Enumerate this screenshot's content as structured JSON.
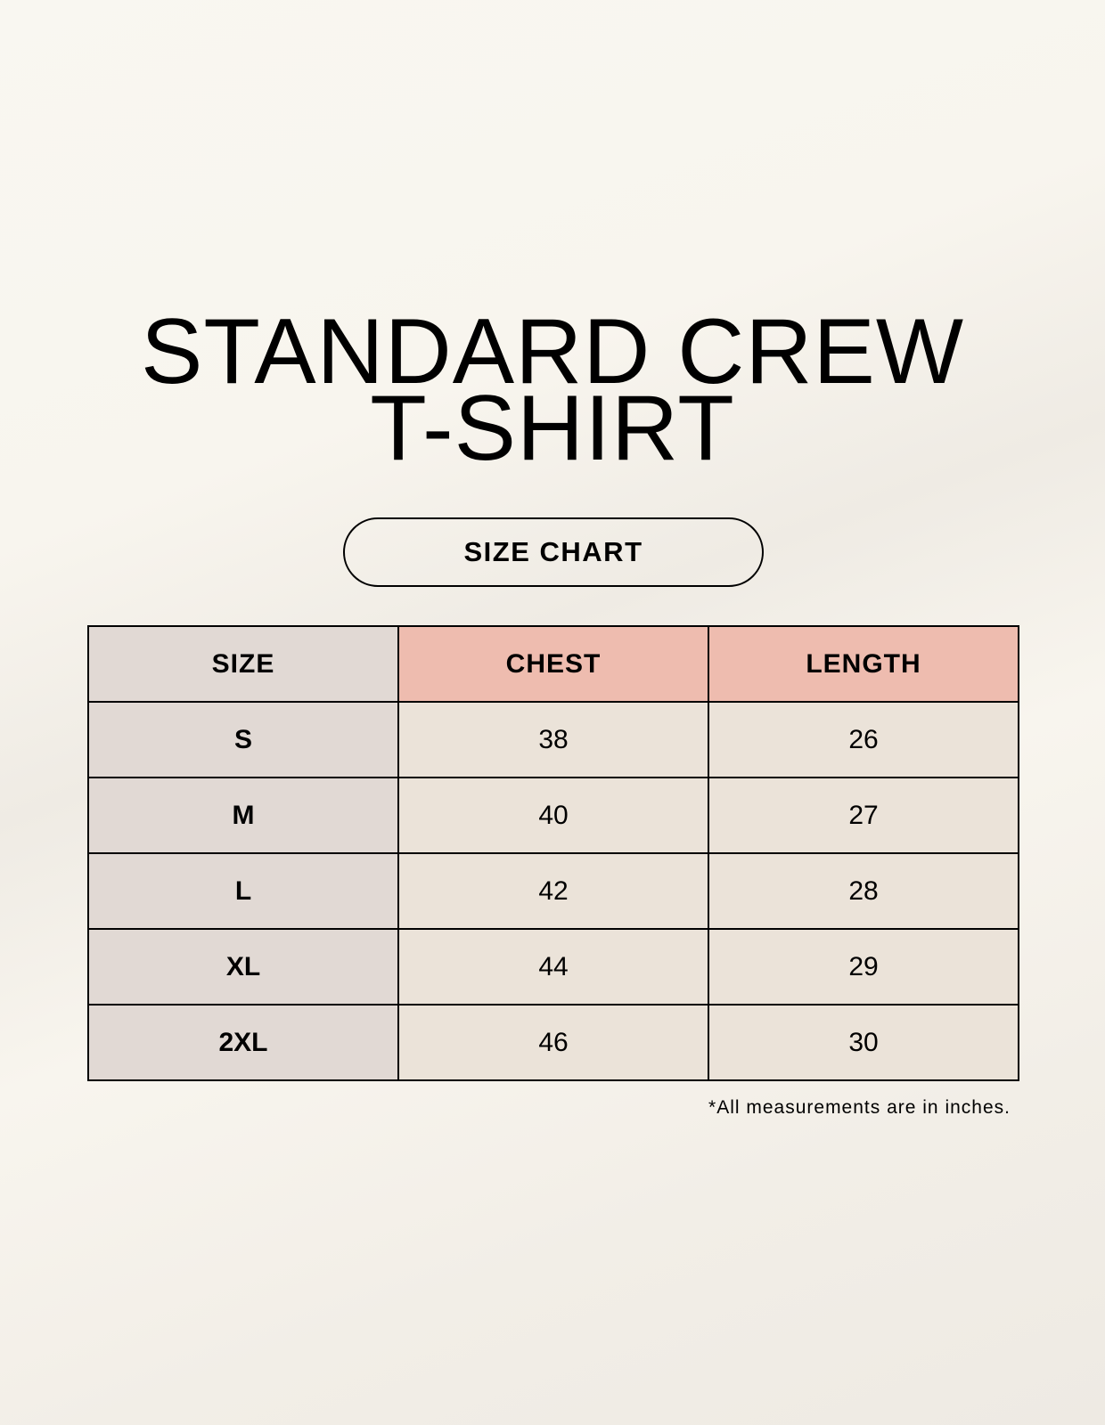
{
  "title_line1": "STANDARD CREW",
  "title_line2": "T-SHIRT",
  "subtitle": "SIZE CHART",
  "table": {
    "headers": [
      "SIZE",
      "CHEST",
      "LENGTH"
    ],
    "rows": [
      [
        "S",
        "38",
        "26"
      ],
      [
        "M",
        "40",
        "27"
      ],
      [
        "L",
        "42",
        "28"
      ],
      [
        "XL",
        "44",
        "29"
      ],
      [
        "2XL",
        "46",
        "30"
      ]
    ]
  },
  "footnote": "*All measurements are in inches.",
  "colors": {
    "size_column": "#e1d9d4",
    "header_accent": "#eebcaf",
    "cell": "#ebe3d9"
  }
}
